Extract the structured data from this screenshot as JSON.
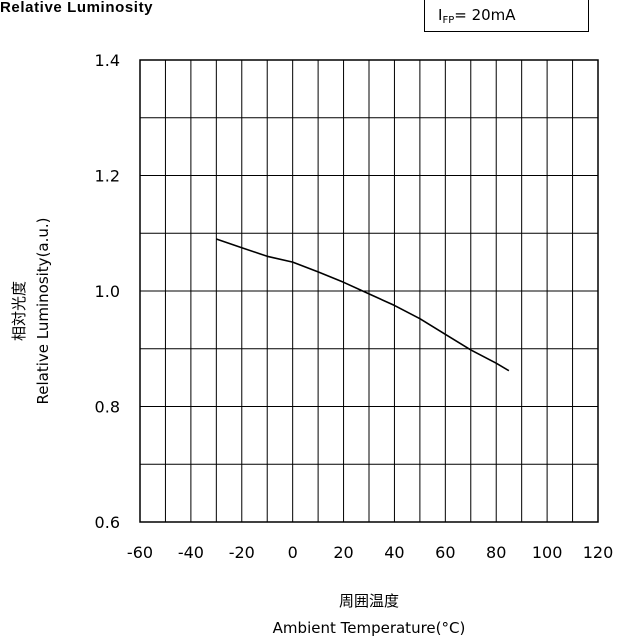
{
  "title": "Relative Luminosity",
  "condition": {
    "symbol": "I",
    "subscript": "FP",
    "value": "= 20mA"
  },
  "chart_data": {
    "type": "line",
    "title": "Relative Luminosity",
    "xlabel_cn": "周囲温度",
    "xlabel": "Ambient Temperature(°C)",
    "ylabel_cn": "相対光度",
    "ylabel": "Relative Luminosity(a.u.)",
    "xlim": [
      -60,
      120
    ],
    "ylim": [
      0.6,
      1.4
    ],
    "xticks": [
      "-60",
      "-40",
      "-20",
      "0",
      "20",
      "40",
      "60",
      "80",
      "100",
      "120"
    ],
    "yticks": [
      "0.6",
      "0.8",
      "1.0",
      "1.2",
      "1.4"
    ],
    "grid": true,
    "series": [
      {
        "x": [
          -30,
          -20,
          -10,
          0,
          10,
          20,
          30,
          40,
          50,
          60,
          70,
          80,
          85
        ],
        "y": [
          1.09,
          1.075,
          1.06,
          1.05,
          1.033,
          1.015,
          0.995,
          0.975,
          0.952,
          0.925,
          0.898,
          0.875,
          0.862
        ]
      }
    ]
  }
}
